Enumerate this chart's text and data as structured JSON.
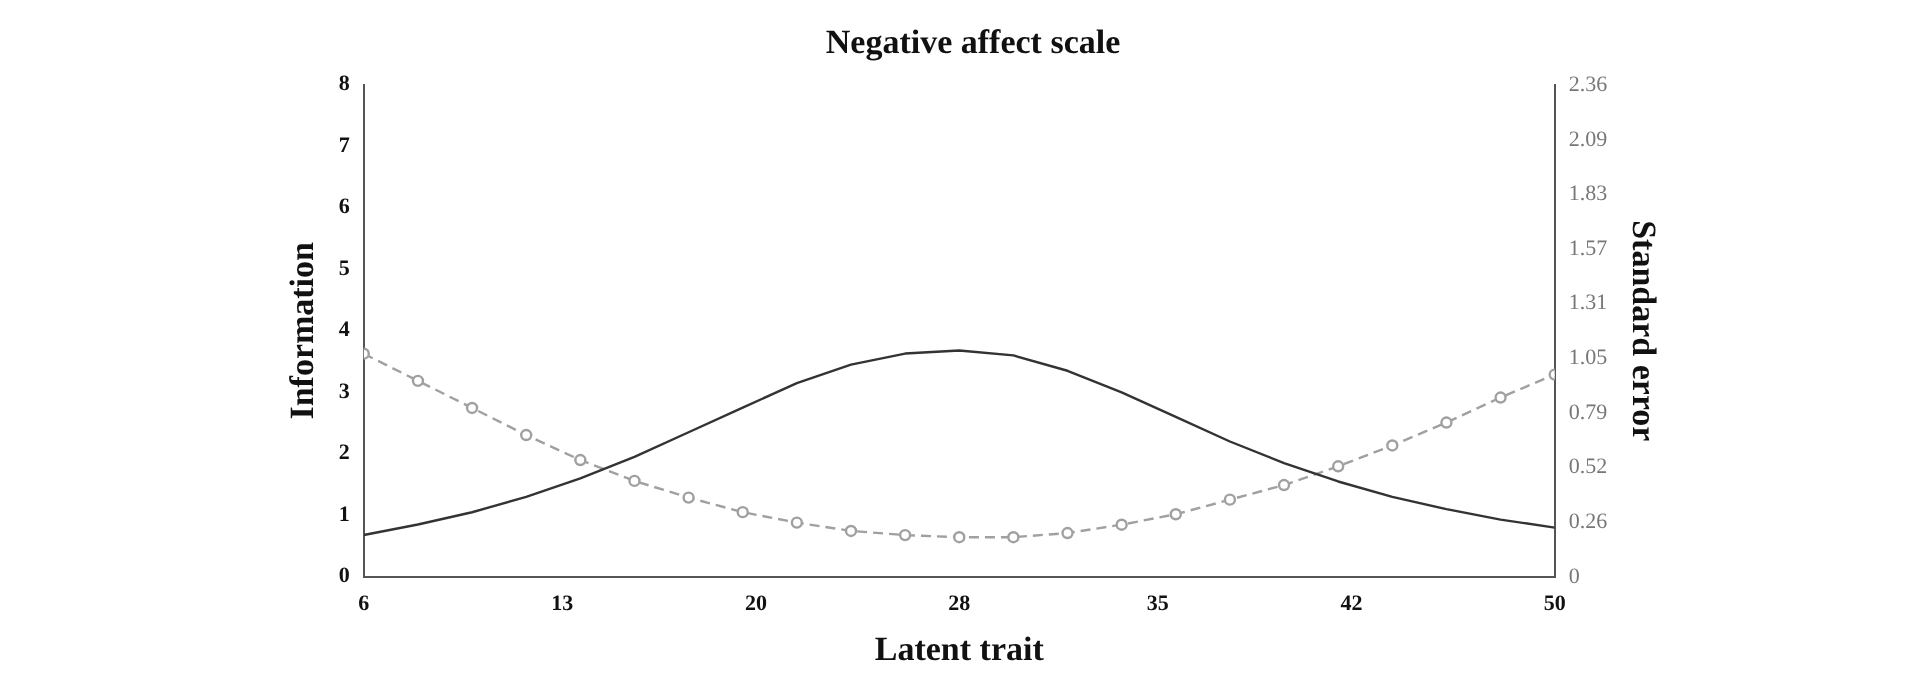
{
  "chart_data": {
    "type": "line",
    "title": "Negative affect scale",
    "xlabel": "Latent trait",
    "ylabel": "Information",
    "y2label": "Standard error",
    "x": [
      6,
      8,
      10,
      12,
      14,
      16,
      18,
      20,
      22,
      24,
      26,
      28,
      30,
      32,
      34,
      36,
      38,
      40,
      42,
      44,
      46,
      48,
      50
    ],
    "series": [
      {
        "type": "line",
        "color": "#333333",
        "line_style": "solid",
        "marker": "none",
        "values": [
          0.68,
          0.85,
          1.05,
          1.3,
          1.6,
          1.95,
          2.35,
          2.75,
          3.15,
          3.45,
          3.63,
          3.68,
          3.6,
          3.35,
          3.0,
          2.6,
          2.2,
          1.85,
          1.55,
          1.3,
          1.1,
          0.93,
          0.8
        ]
      },
      {
        "type": "line",
        "color": "#a0a0a0",
        "line_style": "dashed",
        "marker": "circle",
        "axis": "y2",
        "values": [
          1.07,
          0.94,
          0.81,
          0.68,
          0.56,
          0.46,
          0.38,
          0.31,
          0.26,
          0.22,
          0.2,
          0.19,
          0.19,
          0.21,
          0.25,
          0.3,
          0.37,
          0.44,
          0.53,
          0.63,
          0.74,
          0.86,
          0.97
        ]
      }
    ],
    "xlim": [
      6,
      50
    ],
    "xticks": [
      6,
      {
        "value": 13.33,
        "label": "13"
      },
      {
        "value": 20.49,
        "label": "20"
      },
      28,
      {
        "value": 35.33,
        "label": "35"
      },
      {
        "value": 42.49,
        "label": "42"
      },
      50
    ],
    "ylim": [
      0,
      8
    ],
    "yticks": [
      0,
      1,
      2,
      3,
      4,
      5,
      6,
      7,
      8
    ],
    "y2lim": [
      0,
      2.36
    ],
    "y2ticks": [
      0,
      {
        "value": 0.262,
        "label": "0.26"
      },
      {
        "value": 0.524,
        "label": "0.52"
      },
      {
        "value": 0.787,
        "label": "0.79"
      },
      {
        "value": 1.049,
        "label": "1.05"
      },
      {
        "value": 1.311,
        "label": "1.31"
      },
      {
        "value": 1.573,
        "label": "1.57"
      },
      {
        "value": 1.834,
        "label": "1.83"
      },
      {
        "value": 2.094,
        "label": "2.09"
      },
      2.36
    ]
  }
}
